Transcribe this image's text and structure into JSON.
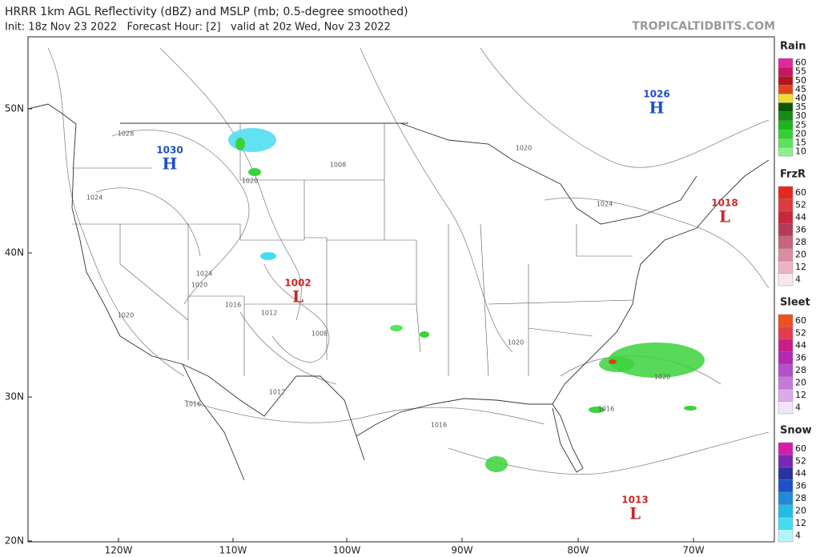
{
  "header": {
    "title": "HRRR 1km AGL Reflectivity (dBZ) and MSLP (mb; 0.5-degree smoothed)",
    "subtitle": "Init: 18z Nov 23 2022   Forecast Hour: [2]   valid at 20z Wed, Nov 23 2022",
    "watermark": "TROPICALTIDBITS.COM"
  },
  "map": {
    "lat_labels": [
      "50N",
      "40N",
      "30N",
      "20N"
    ],
    "lon_labels": [
      "120W",
      "110W",
      "100W",
      "90W",
      "80W",
      "70W"
    ],
    "pressure_centers": [
      {
        "value": "1030",
        "letter": "H",
        "color": "#1f4fc8"
      },
      {
        "value": "1026",
        "letter": "H",
        "color": "#1f4fc8"
      },
      {
        "value": "1018",
        "letter": "L",
        "color": "#c82828"
      },
      {
        "value": "1002",
        "letter": "L",
        "color": "#c82828"
      },
      {
        "value": "1013",
        "letter": "L",
        "color": "#c82828"
      }
    ],
    "contour_labels": [
      "1028",
      "1024",
      "1020",
      "1008",
      "1020",
      "1024",
      "1024",
      "1020",
      "1016",
      "1012",
      "1008",
      "1020",
      "1012",
      "1016",
      "1016",
      "1020",
      "1020",
      "1016"
    ]
  },
  "legend": [
    {
      "title": "Rain",
      "levels": [
        "60",
        "55",
        "50",
        "45",
        "40",
        "35",
        "30",
        "25",
        "20",
        "15",
        "10"
      ],
      "colors": [
        "#e0289e",
        "#c81464",
        "#b4141e",
        "#e0461e",
        "#f0dc32",
        "#0a5a0a",
        "#148c14",
        "#1eb41e",
        "#32d232",
        "#5ae65a",
        "#8cf08c"
      ]
    },
    {
      "title": "FrzR",
      "levels": [
        "60",
        "52",
        "44",
        "36",
        "28",
        "20",
        "12",
        "4"
      ],
      "colors": [
        "#e6281e",
        "#dc3c3c",
        "#c8283c",
        "#b43c5a",
        "#c8647e",
        "#dc8ca0",
        "#ebb4c3",
        "#fae6eb"
      ]
    },
    {
      "title": "Sleet",
      "levels": [
        "60",
        "52",
        "44",
        "36",
        "28",
        "20",
        "12",
        "4"
      ],
      "colors": [
        "#f0501e",
        "#e63c50",
        "#c81e8c",
        "#b428b4",
        "#b450c8",
        "#c878dc",
        "#dcaaeb",
        "#f0e6fa"
      ]
    },
    {
      "title": "Snow",
      "levels": [
        "60",
        "52",
        "44",
        "36",
        "28",
        "20",
        "12",
        "4"
      ],
      "colors": [
        "#d21eaa",
        "#7828b4",
        "#2832a0",
        "#1e50c8",
        "#1e8cdc",
        "#1ebee6",
        "#46dcf0",
        "#b4f5fa"
      ]
    }
  ]
}
